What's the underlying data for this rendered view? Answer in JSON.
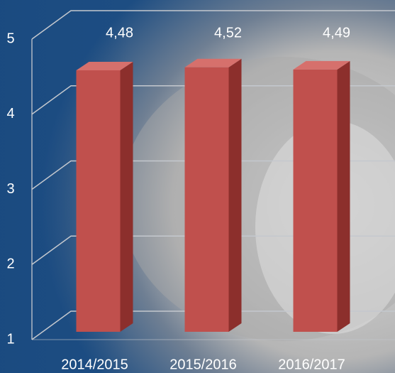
{
  "chart_data": {
    "type": "bar3d",
    "categories": [
      "2014/2015",
      "2015/2016",
      "2016/2017"
    ],
    "values": [
      4.48,
      4.52,
      4.49
    ],
    "value_labels": [
      "4,48",
      "4,52",
      "4,49"
    ],
    "color": "#c0504d",
    "ylim": [
      1,
      5
    ],
    "yticks": [
      1,
      2,
      3,
      4,
      5
    ],
    "grid": true
  }
}
